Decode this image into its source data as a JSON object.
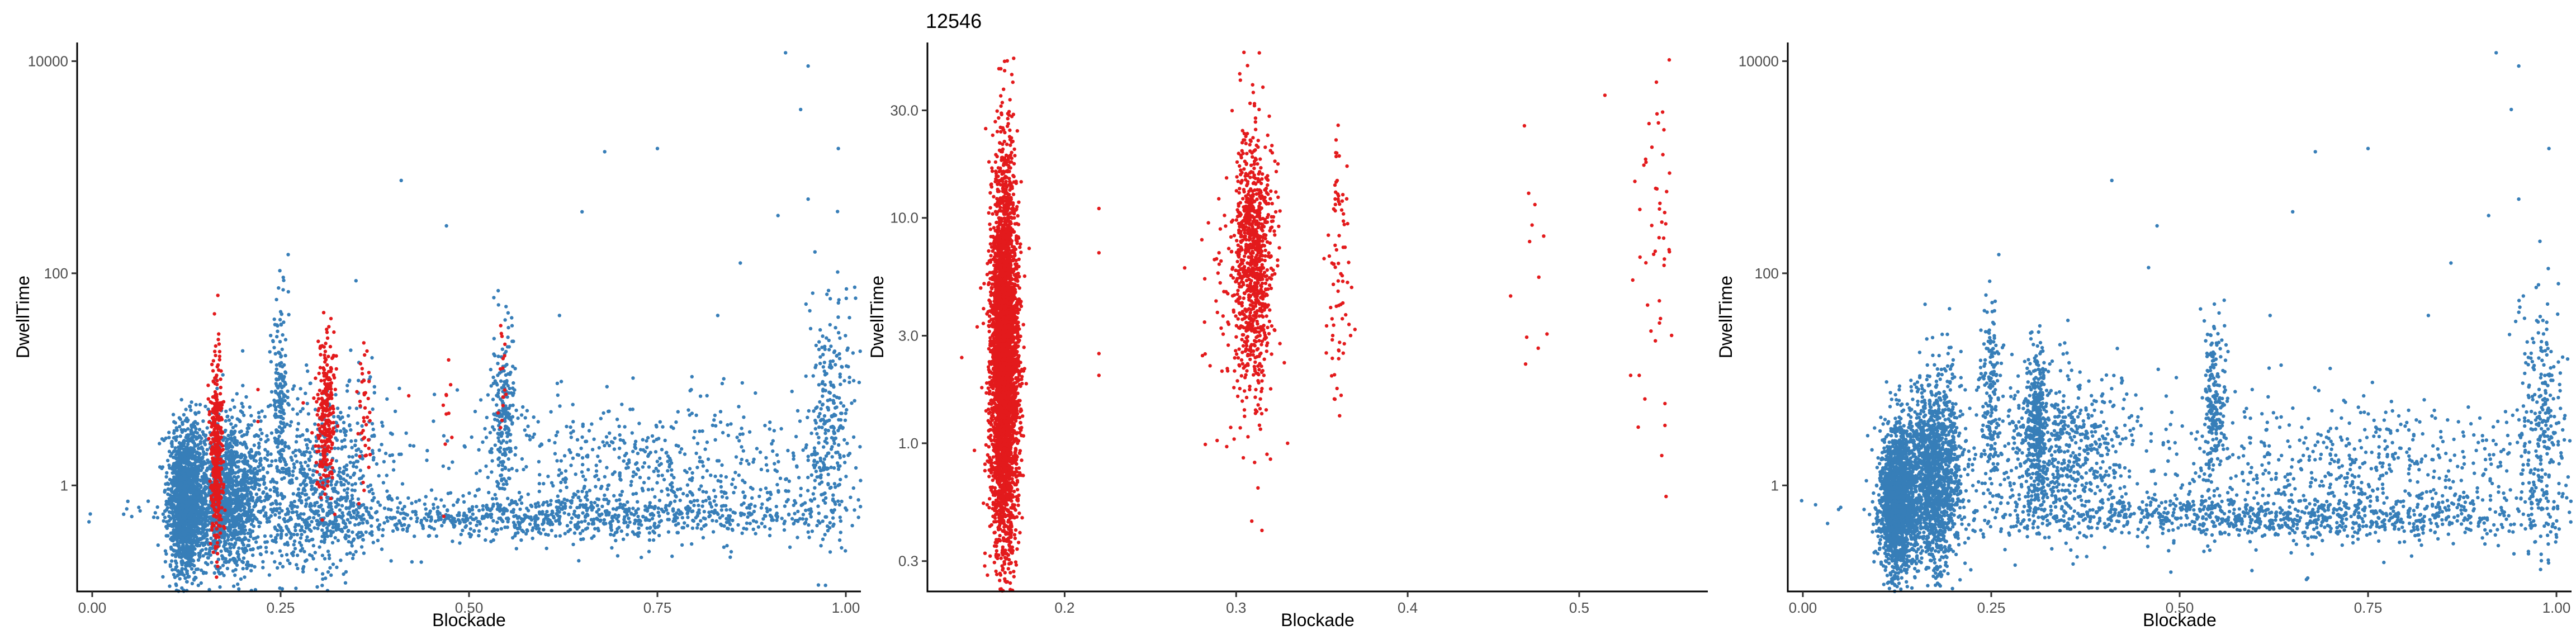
{
  "colors": {
    "background": "#ffffff",
    "selected_points": "#e31a1c",
    "all_points": "#377eb8",
    "axis": "#000000",
    "tick_text": "#4d4d4d"
  },
  "chart_data": [
    {
      "type": "scatter",
      "title": "",
      "xlabel": "Blockade",
      "ylabel": "DwellTime",
      "xlim": [
        -0.02,
        1.02
      ],
      "ylim": [
        0.1,
        15000
      ],
      "yscale": "log",
      "grid": false,
      "legend": "none",
      "x_ticks": [
        0.0,
        0.25,
        0.5,
        0.75,
        1.0
      ],
      "x_tick_labels": [
        "0.00",
        "0.25",
        "0.50",
        "0.75",
        "1.00"
      ],
      "y_ticks": [
        1,
        100,
        10000
      ],
      "y_tick_labels": [
        "1",
        "100",
        "10000"
      ],
      "series": [
        {
          "color": "#377eb8",
          "clusters": [
            {
              "cx": 0.125,
              "sx": 0.012,
              "ly": -0.15,
              "sy": 0.35,
              "n": 1600
            },
            {
              "cx": 0.18,
              "sx": 0.022,
              "ly": -0.1,
              "sy": 0.35,
              "n": 1300
            },
            {
              "cx": 0.3,
              "sx": 0.05,
              "ly": -0.05,
              "sy": 0.45,
              "n": 800
            },
            {
              "cx": 0.25,
              "sx": 0.006,
              "ly": 0.8,
              "sy": 0.45,
              "n": 160
            },
            {
              "cx": 0.545,
              "sx": 0.008,
              "ly": 0.7,
              "sy": 0.4,
              "n": 200
            },
            {
              "cx": 0.6,
              "sx": 0.22,
              "ly": -0.3,
              "sy": 0.1,
              "n": 900
            },
            {
              "cx": 0.75,
              "sx": 0.15,
              "ly": 0.15,
              "sy": 0.35,
              "n": 650
            },
            {
              "cx": 0.98,
              "sx": 0.015,
              "ly": 0.6,
              "sy": 0.6,
              "n": 260
            }
          ],
          "points": [
            [
              0.92,
              12000
            ],
            [
              0.95,
              9000
            ],
            [
              0.94,
              3500
            ],
            [
              0.99,
              1500
            ],
            [
              0.95,
              500
            ],
            [
              0.91,
              350
            ],
            [
              0.41,
              750
            ],
            [
              0.68,
              1400
            ],
            [
              0.75,
              1500
            ],
            [
              0.65,
              380
            ],
            [
              0.47,
              280
            ],
            [
              0.86,
              125
            ],
            [
              0.83,
              40
            ],
            [
              0.62,
              40
            ],
            [
              0.26,
              150
            ],
            [
              0.35,
              85
            ]
          ]
        },
        {
          "color": "#e31a1c",
          "clusters": [
            {
              "cx": 0.165,
              "sx": 0.004,
              "ly": 0.3,
              "sy": 0.45,
              "n": 380
            },
            {
              "cx": 0.31,
              "sx": 0.006,
              "ly": 0.7,
              "sy": 0.35,
              "n": 260
            },
            {
              "cx": 0.36,
              "sx": 0.004,
              "ly": 0.6,
              "sy": 0.4,
              "n": 40
            },
            {
              "cx": 0.47,
              "sx": 0.003,
              "ly": 0.7,
              "sy": 0.3,
              "n": 10
            },
            {
              "cx": 0.545,
              "sx": 0.004,
              "ly": 0.9,
              "sy": 0.35,
              "n": 16
            }
          ],
          "points": [
            [
              0.22,
              8
            ],
            [
              0.22,
              4
            ],
            [
              0.28,
              6
            ],
            [
              0.42,
              7
            ]
          ]
        }
      ]
    },
    {
      "type": "scatter",
      "title": "12546",
      "xlabel": "Blockade",
      "ylabel": "DwellTime",
      "xlim": [
        0.12,
        0.575
      ],
      "ylim": [
        0.22,
        60
      ],
      "yscale": "log",
      "grid": false,
      "legend": "none",
      "x_ticks": [
        0.2,
        0.3,
        0.4,
        0.5
      ],
      "x_tick_labels": [
        "0.2",
        "0.3",
        "0.4",
        "0.5"
      ],
      "y_ticks": [
        0.3,
        1,
        3,
        10,
        30
      ],
      "y_tick_labels": [
        "0.3",
        "1.0",
        "3.0",
        "10.0",
        "30.0"
      ],
      "series": [
        {
          "color": "#e31a1c",
          "clusters": [
            {
              "cx": 0.165,
              "sx": 0.004,
              "ly": 0.35,
              "sy": 0.42,
              "n": 4000
            },
            {
              "cx": 0.31,
              "sx": 0.006,
              "ly": 0.8,
              "sy": 0.3,
              "n": 900
            },
            {
              "cx": 0.3,
              "sx": 0.01,
              "ly": 0.7,
              "sy": 0.35,
              "n": 60
            },
            {
              "cx": 0.36,
              "sx": 0.004,
              "ly": 0.8,
              "sy": 0.3,
              "n": 80
            },
            {
              "cx": 0.475,
              "sx": 0.004,
              "ly": 1.0,
              "sy": 0.3,
              "n": 12
            },
            {
              "cx": 0.545,
              "sx": 0.005,
              "ly": 1.0,
              "sy": 0.4,
              "n": 45
            }
          ],
          "points": [
            [
              0.165,
              45
            ],
            [
              0.31,
              36
            ],
            [
              0.22,
              11
            ],
            [
              0.22,
              7
            ],
            [
              0.22,
              2.5
            ],
            [
              0.22,
              2
            ],
            [
              0.28,
              8
            ],
            [
              0.29,
              7
            ],
            [
              0.27,
              6
            ],
            [
              0.14,
              2.4
            ],
            [
              0.155,
              0.26
            ],
            [
              0.545,
              40
            ],
            [
              0.515,
              35
            ],
            [
              0.53,
              2
            ],
            [
              0.535,
              2
            ],
            [
              0.46,
              4.5
            ],
            [
              0.55,
              1.5
            ],
            [
              0.55,
              1.2
            ],
            [
              0.32,
              0.85
            ],
            [
              0.33,
              1.0
            ]
          ]
        }
      ]
    },
    {
      "type": "scatter",
      "title": "",
      "xlabel": "Blockade",
      "ylabel": "DwellTime",
      "xlim": [
        -0.02,
        1.02
      ],
      "ylim": [
        0.1,
        15000
      ],
      "yscale": "log",
      "grid": false,
      "legend": "none",
      "x_ticks": [
        0.0,
        0.25,
        0.5,
        0.75,
        1.0
      ],
      "x_tick_labels": [
        "0.00",
        "0.25",
        "0.50",
        "0.75",
        "1.00"
      ],
      "y_ticks": [
        1,
        100,
        10000
      ],
      "y_tick_labels": [
        "1",
        "100",
        "10000"
      ],
      "series": [
        {
          "color": "#377eb8",
          "clusters": [
            {
              "cx": 0.125,
              "sx": 0.012,
              "ly": -0.15,
              "sy": 0.35,
              "n": 1700
            },
            {
              "cx": 0.175,
              "sx": 0.018,
              "ly": 0.1,
              "sy": 0.45,
              "n": 1500
            },
            {
              "cx": 0.31,
              "sx": 0.007,
              "ly": 0.6,
              "sy": 0.35,
              "n": 300
            },
            {
              "cx": 0.34,
              "sx": 0.05,
              "ly": 0.3,
              "sy": 0.4,
              "n": 700
            },
            {
              "cx": 0.25,
              "sx": 0.006,
              "ly": 0.8,
              "sy": 0.45,
              "n": 170
            },
            {
              "cx": 0.545,
              "sx": 0.008,
              "ly": 0.7,
              "sy": 0.4,
              "n": 220
            },
            {
              "cx": 0.6,
              "sx": 0.22,
              "ly": -0.3,
              "sy": 0.1,
              "n": 900
            },
            {
              "cx": 0.75,
              "sx": 0.15,
              "ly": 0.15,
              "sy": 0.35,
              "n": 650
            },
            {
              "cx": 0.98,
              "sx": 0.015,
              "ly": 0.6,
              "sy": 0.6,
              "n": 260
            }
          ],
          "points": [
            [
              0.92,
              12000
            ],
            [
              0.95,
              9000
            ],
            [
              0.94,
              3500
            ],
            [
              0.99,
              1500
            ],
            [
              0.95,
              500
            ],
            [
              0.91,
              350
            ],
            [
              0.41,
              750
            ],
            [
              0.68,
              1400
            ],
            [
              0.75,
              1500
            ],
            [
              0.65,
              380
            ],
            [
              0.47,
              280
            ],
            [
              0.86,
              125
            ],
            [
              0.83,
              40
            ],
            [
              0.62,
              40
            ],
            [
              0.26,
              150
            ]
          ]
        }
      ]
    }
  ]
}
